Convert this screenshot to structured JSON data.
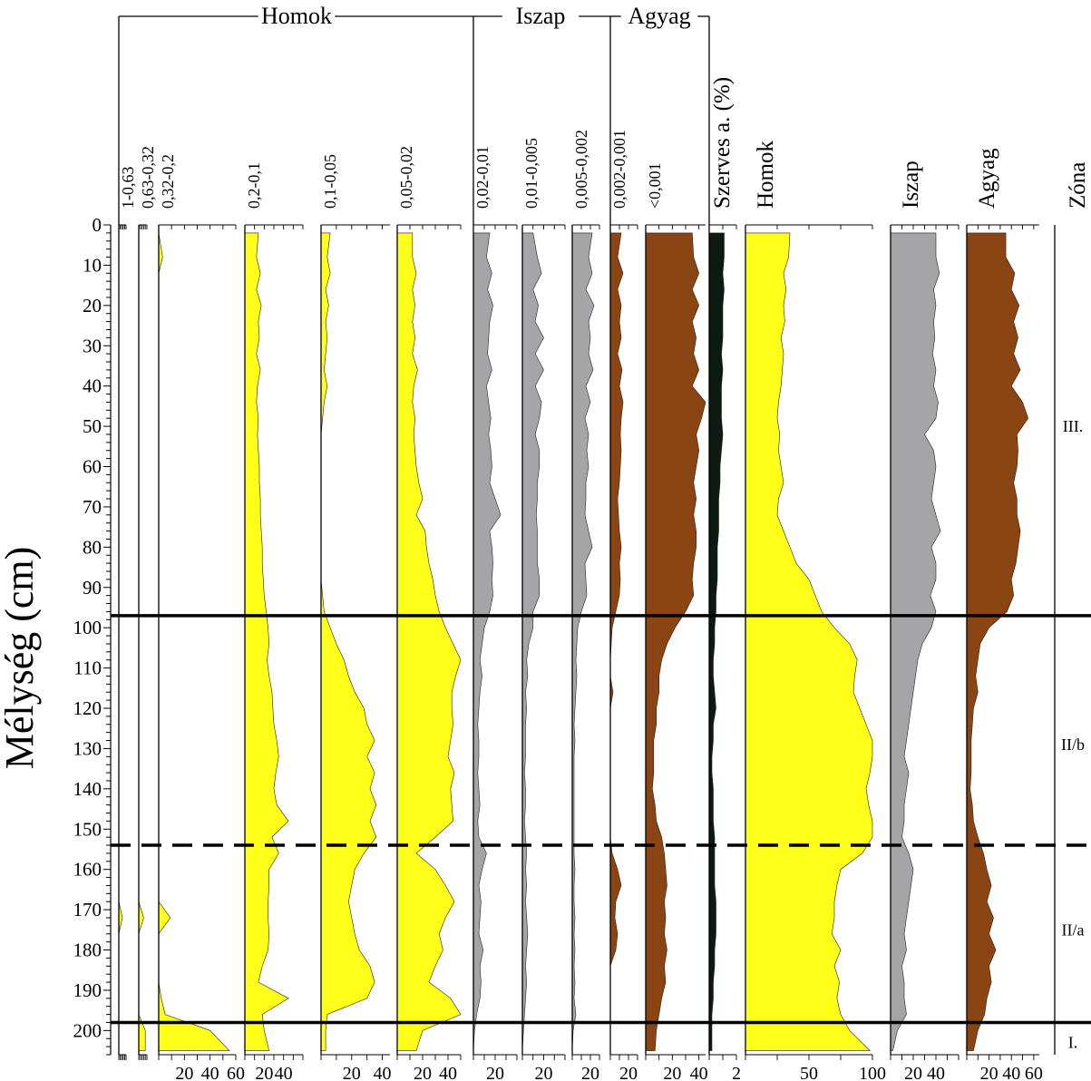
{
  "chart_data": {
    "type": "area",
    "orientation": "vertical-depth",
    "ylabel": "Mélység (cm)",
    "ylim": [
      0,
      206
    ],
    "yticks": [
      0,
      10,
      20,
      30,
      40,
      50,
      60,
      70,
      80,
      90,
      100,
      110,
      120,
      130,
      140,
      150,
      160,
      170,
      180,
      190,
      200
    ],
    "yticks_minor_step": 2,
    "depths": [
      2,
      8,
      12,
      16,
      20,
      24,
      28,
      32,
      36,
      40,
      44,
      48,
      52,
      56,
      60,
      64,
      68,
      72,
      76,
      80,
      84,
      88,
      92,
      96,
      100,
      104,
      108,
      112,
      116,
      120,
      124,
      128,
      132,
      136,
      140,
      144,
      148,
      152,
      156,
      160,
      164,
      168,
      172,
      176,
      180,
      184,
      188,
      192,
      196,
      200,
      205
    ],
    "groups": [
      {
        "label": "Homok",
        "series": [
          0,
          1,
          2,
          3,
          4,
          5
        ]
      },
      {
        "label": "Iszap",
        "series": [
          6,
          7,
          8
        ]
      },
      {
        "label": "Agyag",
        "series": [
          9,
          10
        ]
      }
    ],
    "colors": {
      "sand": "#ffff1a",
      "silt": "#a5a5a8",
      "clay": "#8b4513",
      "organic": "#0d1a13"
    },
    "series": [
      {
        "name": "1-0,63",
        "color": "sand",
        "xlim": [
          0,
          5
        ],
        "ticks": [],
        "values": [
          0,
          0,
          0,
          0,
          0,
          0,
          0,
          0,
          0,
          0,
          0,
          0,
          0,
          0,
          0,
          0,
          0,
          0,
          0,
          0,
          0,
          0,
          0,
          0,
          0,
          0,
          0,
          0,
          0,
          0,
          0,
          0,
          0,
          0,
          0,
          0,
          0,
          0,
          0,
          0,
          0,
          0,
          2.5,
          0,
          0,
          0,
          0,
          0,
          0,
          0,
          0
        ]
      },
      {
        "name": "0,63-0,32",
        "color": "sand",
        "xlim": [
          0,
          5
        ],
        "ticks": [],
        "values": [
          0,
          0,
          0,
          0,
          0,
          0,
          0,
          0,
          0,
          0,
          0,
          0,
          0,
          0,
          0,
          0,
          0,
          0,
          0,
          0,
          0,
          0,
          0,
          0,
          0,
          0,
          0,
          0,
          0,
          0,
          0,
          0,
          0,
          0,
          0,
          0,
          0,
          0,
          0,
          0,
          0,
          0,
          3,
          0,
          0,
          0,
          0,
          0,
          0,
          4,
          4
        ]
      },
      {
        "name": "0,32-0,2",
        "color": "sand",
        "xlim": [
          0,
          60
        ],
        "ticks": [
          20,
          40,
          60
        ],
        "values": [
          0,
          3,
          0,
          0,
          0,
          0,
          0,
          0,
          0,
          0,
          0,
          0,
          0,
          0,
          0,
          0,
          0,
          0,
          0,
          0,
          0,
          0,
          0,
          0,
          0,
          0,
          0,
          0,
          0,
          0,
          0,
          0,
          0,
          0,
          0,
          0,
          0,
          0,
          0,
          0,
          0,
          0,
          9,
          0,
          0,
          0,
          0,
          2,
          5,
          40,
          55
        ]
      },
      {
        "name": "0,2-0,1",
        "color": "sand",
        "xlim": [
          0,
          60
        ],
        "ticks": [
          20,
          40
        ],
        "values": [
          14,
          12,
          16,
          12,
          17,
          14,
          15,
          12,
          16,
          13,
          12,
          14,
          13,
          14,
          15,
          15,
          16,
          16,
          17,
          18,
          18,
          19,
          20,
          22,
          24,
          25,
          23,
          25,
          28,
          29,
          30,
          33,
          35,
          32,
          30,
          33,
          45,
          28,
          35,
          25,
          25,
          24,
          24,
          25,
          24,
          18,
          14,
          45,
          18,
          20,
          25
        ]
      },
      {
        "name": "0,1-0,05",
        "color": "sand",
        "xlim": [
          0,
          45
        ],
        "ticks": [
          20,
          40
        ],
        "values": [
          6,
          4,
          6,
          3,
          5,
          3,
          4,
          3,
          2,
          4,
          2,
          1,
          0,
          0,
          0,
          0,
          0,
          0,
          0,
          0,
          0,
          0,
          1,
          2,
          6,
          10,
          15,
          18,
          22,
          28,
          30,
          35,
          30,
          35,
          32,
          36,
          32,
          36,
          28,
          22,
          20,
          18,
          20,
          22,
          25,
          32,
          35,
          30,
          4,
          3,
          3
        ]
      },
      {
        "name": "0,05-0,02",
        "color": "sand",
        "xlim": [
          0,
          50
        ],
        "ticks": [
          20,
          40
        ],
        "values": [
          12,
          12,
          15,
          12,
          14,
          12,
          14,
          12,
          16,
          13,
          12,
          14,
          13,
          14,
          15,
          17,
          20,
          15,
          22,
          23,
          25,
          28,
          30,
          33,
          38,
          44,
          50,
          46,
          43,
          43,
          44,
          42,
          40,
          45,
          42,
          43,
          44,
          30,
          15,
          30,
          38,
          45,
          38,
          33,
          36,
          30,
          25,
          42,
          55,
          20,
          15
        ]
      },
      {
        "name": "0,02-0,01",
        "color": "silt",
        "xlim": [
          0,
          40
        ],
        "ticks": [
          20
        ],
        "values": [
          15,
          12,
          17,
          13,
          18,
          15,
          14,
          13,
          17,
          12,
          14,
          16,
          14,
          16,
          17,
          15,
          20,
          25,
          15,
          17,
          18,
          17,
          18,
          15,
          10,
          8,
          6,
          8,
          6,
          5,
          4,
          5,
          5,
          4,
          5,
          6,
          4,
          5,
          12,
          8,
          5,
          7,
          6,
          5,
          9,
          6,
          7,
          6,
          3,
          1,
          0
        ]
      },
      {
        "name": "0,01-0,005",
        "color": "silt",
        "xlim": [
          0,
          40
        ],
        "ticks": [
          20
        ],
        "values": [
          10,
          14,
          18,
          10,
          15,
          12,
          20,
          12,
          20,
          12,
          18,
          16,
          12,
          16,
          16,
          14,
          14,
          13,
          14,
          14,
          14,
          16,
          16,
          10,
          10,
          6,
          4,
          5,
          3,
          4,
          3,
          3,
          3,
          2,
          3,
          3,
          2,
          3,
          4,
          3,
          4,
          3,
          4,
          5,
          4,
          3,
          4,
          3,
          2,
          1,
          0
        ]
      },
      {
        "name": "0,005-0,002",
        "color": "silt",
        "xlim": [
          0,
          30
        ],
        "ticks": [
          20
        ],
        "values": [
          22,
          18,
          22,
          15,
          24,
          18,
          20,
          18,
          23,
          15,
          20,
          14,
          18,
          16,
          18,
          15,
          15,
          14,
          18,
          22,
          14,
          15,
          16,
          10,
          6,
          5,
          4,
          5,
          4,
          3,
          2,
          3,
          2,
          2,
          2,
          2,
          2,
          2,
          2,
          3,
          2,
          2,
          3,
          2,
          3,
          2,
          3,
          2,
          4,
          1,
          0
        ]
      },
      {
        "name": "0,002-0,001",
        "color": "clay",
        "xlim": [
          0,
          30
        ],
        "ticks": [
          20
        ],
        "values": [
          12,
          8,
          14,
          8,
          12,
          10,
          12,
          8,
          13,
          10,
          14,
          12,
          11,
          12,
          11,
          10,
          8,
          9,
          10,
          12,
          10,
          11,
          10,
          6,
          2,
          1,
          0,
          0,
          3,
          0,
          0,
          0,
          0,
          0,
          0,
          0,
          0,
          0,
          2,
          8,
          12,
          6,
          5,
          8,
          6,
          0,
          0,
          0,
          0,
          0,
          0
        ]
      },
      {
        "name": "<0,001",
        "color": "clay",
        "xlim": [
          0,
          45
        ],
        "ticks": [
          20,
          40
        ],
        "values": [
          35,
          36,
          40,
          35,
          40,
          35,
          38,
          36,
          40,
          35,
          45,
          42,
          38,
          40,
          38,
          36,
          38,
          36,
          38,
          38,
          36,
          35,
          36,
          30,
          22,
          16,
          12,
          10,
          10,
          8,
          8,
          6,
          6,
          6,
          5,
          7,
          8,
          12,
          14,
          15,
          16,
          14,
          15,
          14,
          16,
          14,
          15,
          12,
          10,
          8,
          7
        ]
      },
      {
        "name": "Szerves a. (%)",
        "color": "organic",
        "xlim": [
          0,
          2
        ],
        "ticks": [
          2
        ],
        "values": [
          1.1,
          1.1,
          1.0,
          1.1,
          1.0,
          1.0,
          1.0,
          0.9,
          1.0,
          0.9,
          0.9,
          0.9,
          1.0,
          0.9,
          0.8,
          0.8,
          0.7,
          0.7,
          0.7,
          0.6,
          0.6,
          0.6,
          0.5,
          0.5,
          0.4,
          0.4,
          0.3,
          0.3,
          0.4,
          0.5,
          0.3,
          0.3,
          0.2,
          0.2,
          0.3,
          0.3,
          0.3,
          0.4,
          0.4,
          0.4,
          0.4,
          0.5,
          0.5,
          0.5,
          0.4,
          0.4,
          0.3,
          0.3,
          0.2,
          0.2,
          0.2
        ]
      },
      {
        "name": "Homok",
        "color": "sand",
        "xlim": [
          0,
          100
        ],
        "ticks": [
          50,
          100
        ],
        "values": [
          35,
          34,
          30,
          32,
          30,
          31,
          28,
          30,
          29,
          28,
          26,
          25,
          27,
          26,
          28,
          30,
          26,
          25,
          30,
          35,
          40,
          50,
          55,
          60,
          70,
          82,
          88,
          86,
          85,
          90,
          95,
          100,
          102,
          98,
          95,
          97,
          100,
          102,
          92,
          75,
          72,
          70,
          70,
          68,
          75,
          70,
          74,
          72,
          75,
          82,
          98
        ]
      },
      {
        "name": "Iszap",
        "color": "silt",
        "xlim": [
          0,
          60
        ],
        "ticks": [
          20,
          40
        ],
        "values": [
          40,
          40,
          43,
          38,
          40,
          38,
          39,
          37,
          40,
          38,
          42,
          40,
          30,
          38,
          40,
          38,
          36,
          40,
          44,
          36,
          40,
          40,
          35,
          40,
          36,
          28,
          24,
          22,
          20,
          18,
          16,
          14,
          12,
          16,
          14,
          12,
          12,
          10,
          16,
          20,
          18,
          16,
          14,
          12,
          14,
          10,
          12,
          12,
          14,
          6,
          2
        ]
      },
      {
        "name": "Agyag",
        "color": "clay",
        "xlim": [
          0,
          65
        ],
        "ticks": [
          20,
          40,
          60
        ],
        "values": [
          35,
          35,
          43,
          40,
          47,
          42,
          46,
          42,
          48,
          40,
          50,
          55,
          45,
          46,
          45,
          42,
          45,
          45,
          48,
          46,
          44,
          40,
          42,
          36,
          20,
          12,
          10,
          8,
          10,
          6,
          5,
          4,
          4,
          4,
          3,
          5,
          6,
          10,
          15,
          18,
          22,
          18,
          24,
          20,
          26,
          20,
          22,
          18,
          16,
          10,
          6
        ]
      }
    ],
    "zones": [
      {
        "label": "III.",
        "label_depth": 50
      },
      {
        "label": "II/b",
        "label_depth": 129
      },
      {
        "label": "II/a",
        "label_depth": 175
      },
      {
        "label": "I.",
        "label_depth": 203
      }
    ],
    "zone_boundaries": [
      {
        "depth": 97,
        "style": "solid"
      },
      {
        "depth": 154,
        "style": "dashed"
      },
      {
        "depth": 198,
        "style": "solid"
      }
    ],
    "zone_header": "Zóna"
  }
}
